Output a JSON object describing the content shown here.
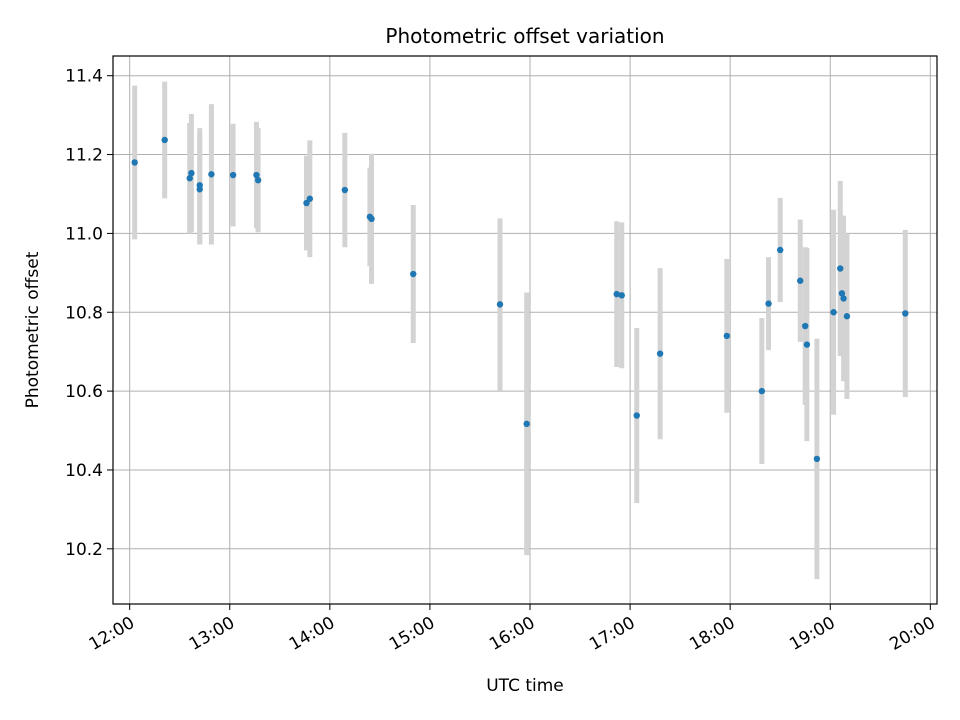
{
  "chart_data": {
    "type": "scatter",
    "title": "Photometric offset variation",
    "xlabel": "UTC time",
    "ylabel": "Photometric offset",
    "x_ticks": [
      "12:00",
      "13:00",
      "14:00",
      "15:00",
      "16:00",
      "17:00",
      "18:00",
      "19:00",
      "20:00"
    ],
    "y_ticks": [
      "10.2",
      "10.4",
      "10.6",
      "10.8",
      "11.0",
      "11.2",
      "11.4"
    ],
    "xlim": [
      "11:50",
      "20:04"
    ],
    "ylim": [
      10.06,
      11.45
    ],
    "grid": true,
    "marker_color": "#1f77b4",
    "errorbar_color": "#d3d3d3",
    "points": [
      {
        "x": "12:03",
        "y": 11.18,
        "err": 0.195
      },
      {
        "x": "12:21",
        "y": 11.237,
        "err": 0.148
      },
      {
        "x": "12:36",
        "y": 11.14,
        "err": 0.14
      },
      {
        "x": "12:37",
        "y": 11.153,
        "err": 0.15
      },
      {
        "x": "12:42",
        "y": 11.112,
        "err": 0.14
      },
      {
        "x": "12:42",
        "y": 11.122,
        "err": 0.145
      },
      {
        "x": "12:49",
        "y": 11.15,
        "err": 0.178
      },
      {
        "x": "13:02",
        "y": 11.148,
        "err": 0.13
      },
      {
        "x": "13:16",
        "y": 11.148,
        "err": 0.135
      },
      {
        "x": "13:17",
        "y": 11.135,
        "err": 0.132
      },
      {
        "x": "13:46",
        "y": 11.077,
        "err": 0.12
      },
      {
        "x": "13:48",
        "y": 11.088,
        "err": 0.148
      },
      {
        "x": "14:09",
        "y": 11.11,
        "err": 0.145
      },
      {
        "x": "14:24",
        "y": 11.042,
        "err": 0.125
      },
      {
        "x": "14:25",
        "y": 11.037,
        "err": 0.165
      },
      {
        "x": "14:50",
        "y": 10.897,
        "err": 0.175
      },
      {
        "x": "15:42",
        "y": 10.82,
        "err": 0.218
      },
      {
        "x": "15:58",
        "y": 10.517,
        "err": 0.333
      },
      {
        "x": "16:52",
        "y": 10.846,
        "err": 0.185
      },
      {
        "x": "16:55",
        "y": 10.843,
        "err": 0.185
      },
      {
        "x": "17:04",
        "y": 10.538,
        "err": 0.222
      },
      {
        "x": "17:18",
        "y": 10.695,
        "err": 0.217
      },
      {
        "x": "17:58",
        "y": 10.74,
        "err": 0.195
      },
      {
        "x": "18:19",
        "y": 10.6,
        "err": 0.185
      },
      {
        "x": "18:23",
        "y": 10.822,
        "err": 0.118
      },
      {
        "x": "18:30",
        "y": 10.958,
        "err": 0.132
      },
      {
        "x": "18:42",
        "y": 10.88,
        "err": 0.155
      },
      {
        "x": "18:45",
        "y": 10.765,
        "err": 0.2
      },
      {
        "x": "18:46",
        "y": 10.718,
        "err": 0.245
      },
      {
        "x": "18:52",
        "y": 10.428,
        "err": 0.305
      },
      {
        "x": "19:02",
        "y": 10.8,
        "err": 0.26
      },
      {
        "x": "19:06",
        "y": 10.911,
        "err": 0.222
      },
      {
        "x": "19:07",
        "y": 10.848,
        "err": 0.155
      },
      {
        "x": "19:08",
        "y": 10.835,
        "err": 0.21
      },
      {
        "x": "19:10",
        "y": 10.79,
        "err": 0.21
      },
      {
        "x": "19:45",
        "y": 10.797,
        "err": 0.212
      }
    ]
  }
}
